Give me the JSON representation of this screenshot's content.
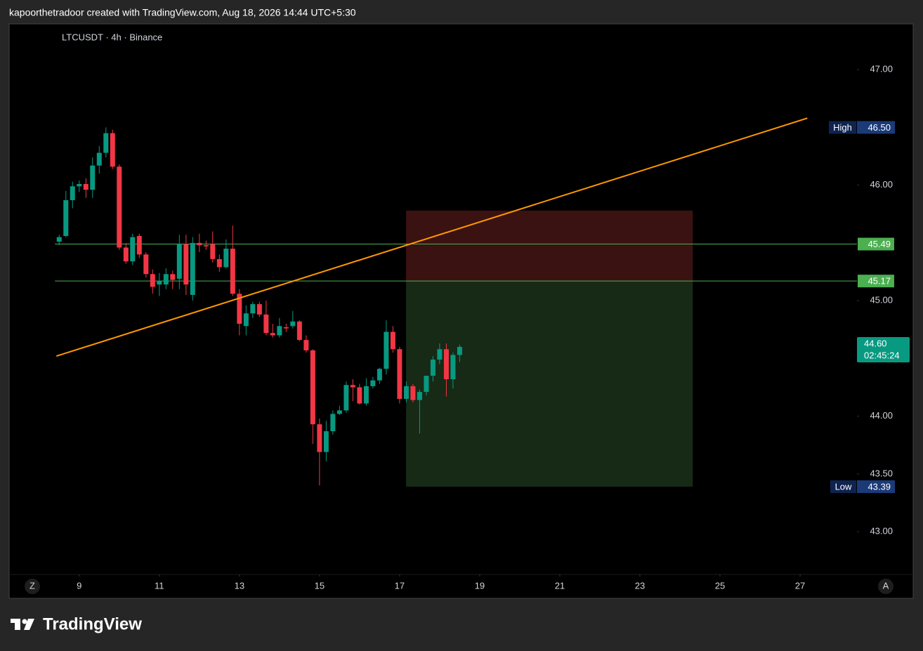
{
  "header": {
    "caption": "kapoorthetradoor created with TradingView.com, Aug 18, 2026 14:44 UTC+5:30"
  },
  "footer": {
    "logo": "TradingView"
  },
  "buttons": [
    "Z",
    "A"
  ],
  "chart_data": {
    "type": "candlestick",
    "symbol": "LTCUSDT · 4h · Binance",
    "up_color": "#089981",
    "down_color": "#f23645",
    "x": [
      8.5,
      8.667,
      8.833,
      9,
      9.167,
      9.333,
      9.5,
      9.667,
      9.833,
      10,
      10.167,
      10.333,
      10.5,
      10.667,
      10.833,
      11,
      11.167,
      11.333,
      11.5,
      11.667,
      11.833,
      12,
      12.167,
      12.333,
      12.5,
      12.667,
      12.833,
      13,
      13.167,
      13.333,
      13.5,
      13.667,
      13.833,
      14,
      14.167,
      14.333,
      14.5,
      14.667,
      14.833,
      15,
      15.167,
      15.333,
      15.5,
      15.667,
      15.833,
      16,
      16.167,
      16.333,
      16.5,
      16.667,
      16.833,
      17,
      17.167,
      17.333,
      17.5,
      17.667,
      17.833,
      18,
      18.167,
      18.333,
      18.5
    ],
    "open": [
      45.51,
      45.56,
      45.87,
      45.99,
      46.01,
      45.96,
      46.17,
      46.28,
      46.45,
      46.16,
      45.46,
      45.34,
      45.56,
      45.4,
      45.23,
      45.14,
      45.14,
      45.23,
      45.19,
      45.49,
      45.05,
      45.5,
      45.48,
      45.49,
      45.36,
      45.29,
      45.45,
      45.06,
      44.78,
      44.89,
      44.97,
      44.88,
      44.72,
      44.7,
      44.77,
      44.78,
      44.82,
      44.66,
      44.57,
      43.93,
      43.69,
      43.87,
      44.02,
      44.05,
      44.27,
      44.25,
      44.11,
      44.26,
      44.31,
      44.41,
      44.73,
      44.58,
      44.15,
      44.26,
      44.14,
      44.21,
      44.35,
      44.49,
      44.58,
      44.32,
      44.53
    ],
    "high": [
      45.57,
      45.95,
      46.03,
      46.04,
      46.06,
      46.24,
      46.34,
      46.5,
      46.48,
      46.18,
      45.5,
      45.58,
      45.58,
      45.42,
      45.27,
      45.24,
      45.28,
      45.26,
      45.57,
      45.57,
      45.55,
      45.58,
      45.52,
      45.6,
      45.4,
      45.53,
      45.65,
      45.1,
      44.96,
      44.99,
      44.99,
      45.0,
      44.8,
      44.85,
      44.8,
      44.91,
      44.83,
      44.7,
      44.58,
      43.98,
      43.96,
      44.05,
      44.09,
      44.3,
      44.32,
      44.28,
      44.33,
      44.34,
      44.42,
      44.83,
      44.78,
      44.6,
      44.3,
      44.28,
      44.23,
      44.35,
      44.52,
      44.63,
      44.63,
      44.55,
      44.62
    ],
    "low": [
      45.48,
      45.55,
      45.8,
      45.94,
      45.89,
      45.89,
      46.1,
      46.24,
      46.14,
      45.44,
      45.32,
      45.31,
      45.37,
      45.2,
      45.06,
      45.04,
      45.1,
      45.1,
      45.1,
      45.05,
      45.0,
      45.42,
      45.44,
      45.33,
      45.25,
      45.28,
      45.04,
      44.7,
      44.7,
      44.85,
      44.86,
      44.7,
      44.68,
      44.68,
      44.73,
      44.76,
      44.65,
      44.55,
      43.76,
      43.4,
      43.61,
      43.84,
      44.01,
      44.03,
      44.13,
      44.1,
      44.09,
      44.24,
      44.28,
      44.36,
      44.55,
      44.11,
      44.12,
      44.12,
      43.85,
      44.18,
      44.3,
      44.45,
      44.17,
      44.24,
      44.47
    ],
    "close": [
      45.55,
      45.87,
      45.99,
      46.01,
      45.96,
      46.17,
      46.28,
      46.45,
      46.16,
      45.46,
      45.34,
      45.55,
      45.4,
      45.23,
      45.12,
      45.17,
      45.23,
      45.18,
      45.49,
      45.14,
      45.5,
      45.48,
      45.47,
      45.36,
      45.29,
      45.45,
      45.06,
      44.8,
      44.89,
      44.97,
      44.88,
      44.72,
      44.7,
      44.78,
      44.76,
      44.82,
      44.66,
      44.57,
      43.93,
      43.69,
      43.87,
      44.02,
      44.05,
      44.27,
      44.25,
      44.11,
      44.26,
      44.31,
      44.41,
      44.73,
      44.58,
      44.15,
      44.26,
      44.14,
      44.21,
      44.35,
      44.49,
      44.58,
      44.32,
      44.53,
      44.6
    ],
    "xlim": [
      7.25,
      28.42
    ],
    "xticks": [
      9,
      11,
      13,
      15,
      17,
      19,
      21,
      23,
      25,
      27
    ],
    "ylim": [
      42.63,
      47.39
    ],
    "yticks": [
      {
        "value": 43,
        "label": "43.00"
      },
      {
        "value": 43.5,
        "label": "43.50"
      },
      {
        "value": 44,
        "label": "44.00"
      },
      {
        "value": 45,
        "label": "45.00"
      },
      {
        "value": 46,
        "label": "46.00"
      },
      {
        "value": 47,
        "label": "47.00"
      }
    ],
    "grid": false,
    "trendline": {
      "x": [
        8.43,
        27.18
      ],
      "y": [
        44.52,
        46.58
      ],
      "color": "#ff9800"
    },
    "hlines": [
      {
        "value": 45.49,
        "color": "#4caf50"
      },
      {
        "value": 45.17,
        "color": "#4caf50"
      }
    ],
    "position": {
      "x": [
        17.16,
        24.32
      ],
      "stop": 45.78,
      "entry": 45.17,
      "target": 43.39,
      "stop_color": "#3a1212",
      "target_color": "#162a16"
    },
    "high_marker": {
      "label": "High",
      "value": 46.5,
      "value_label": "46.50"
    },
    "low_marker": {
      "label": "Low",
      "value": 43.39,
      "value_label": "43.39"
    },
    "last_price": {
      "value": 44.6,
      "value_label": "44.60",
      "countdown": "02:45:24"
    }
  }
}
